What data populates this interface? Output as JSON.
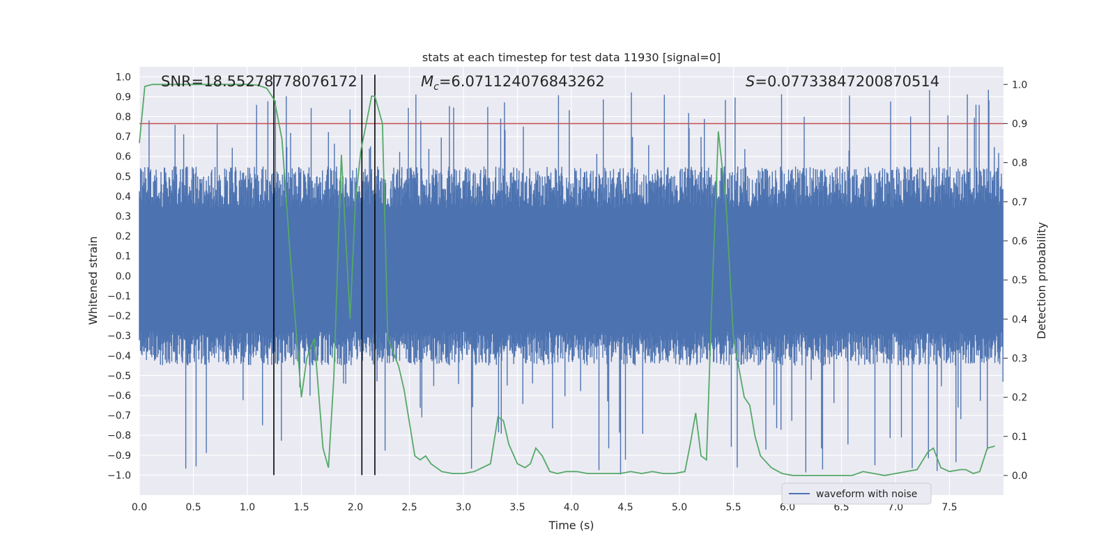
{
  "chart_data": {
    "type": "line",
    "title": "stats at each timestep for test data 11930 [signal=0]",
    "xlabel": "Time (s)",
    "ylabel_left": "Whitened strain",
    "ylabel_right": "Detection probability",
    "xlim": [
      0.0,
      8.0
    ],
    "ylim_left": [
      -1.1,
      1.05
    ],
    "ylim_right": [
      -0.05,
      1.045
    ],
    "x_ticks": [
      "0.0",
      "0.5",
      "1.0",
      "1.5",
      "2.0",
      "2.5",
      "3.0",
      "3.5",
      "4.0",
      "4.5",
      "5.0",
      "5.5",
      "6.0",
      "6.5",
      "7.0",
      "7.5"
    ],
    "x_tick_values": [
      0.0,
      0.5,
      1.0,
      1.5,
      2.0,
      2.5,
      3.0,
      3.5,
      4.0,
      4.5,
      5.0,
      5.5,
      6.0,
      6.5,
      7.0,
      7.5
    ],
    "y_ticks_left": [
      "1.0",
      "0.9",
      "0.8",
      "0.7",
      "0.6",
      "0.5",
      "0.4",
      "0.3",
      "0.2",
      "0.1",
      "0.0",
      "−0.1",
      "−0.2",
      "−0.3",
      "−0.4",
      "−0.5",
      "−0.6",
      "−0.7",
      "−0.8",
      "−0.9",
      "−1.0"
    ],
    "y_tick_values_left": [
      1.0,
      0.9,
      0.8,
      0.7,
      0.6,
      0.5,
      0.4,
      0.3,
      0.2,
      0.1,
      0.0,
      -0.1,
      -0.2,
      -0.3,
      -0.4,
      -0.5,
      -0.6,
      -0.7,
      -0.8,
      -0.9,
      -1.0
    ],
    "y_ticks_right": [
      "1.0",
      "0.9",
      "0.8",
      "0.7",
      "0.6",
      "0.5",
      "0.4",
      "0.3",
      "0.2",
      "0.1",
      "0.0"
    ],
    "y_tick_values_right": [
      1.0,
      0.9,
      0.8,
      0.7,
      0.6,
      0.5,
      0.4,
      0.3,
      0.2,
      0.1,
      0.0
    ],
    "annotations": {
      "snr": "SNR=18.55278778076172",
      "mc_symbol": "M",
      "mc_sub": "c",
      "mc_value": "=6.071124076843262",
      "s_symbol": "S",
      "s_value": "=0.07733847200870514"
    },
    "legend": {
      "label": "waveform with noise",
      "position": "lower-right"
    },
    "threshold": {
      "axis": "right",
      "value": 0.9,
      "color": "#c44e52"
    },
    "vertical_lines_x": [
      1.245,
      2.06,
      2.18
    ],
    "waveform": {
      "name": "waveform with noise",
      "color": "#4c72b0",
      "sample_count": 1600,
      "typical_range": [
        -0.45,
        0.55
      ],
      "extreme_range": [
        -1.0,
        0.94
      ]
    },
    "detection_probability": {
      "name": "Detection probability",
      "color": "#55a868",
      "x": [
        0.0,
        0.05,
        0.12,
        0.3,
        0.6,
        0.9,
        1.0,
        1.1,
        1.18,
        1.25,
        1.32,
        1.4,
        1.5,
        1.55,
        1.62,
        1.7,
        1.75,
        1.8,
        1.87,
        1.95,
        2.0,
        2.05,
        2.15,
        2.18,
        2.25,
        2.3,
        2.4,
        2.45,
        2.55,
        2.6,
        2.65,
        2.7,
        2.8,
        2.9,
        3.0,
        3.1,
        3.25,
        3.32,
        3.37,
        3.42,
        3.5,
        3.57,
        3.62,
        3.67,
        3.73,
        3.8,
        3.87,
        3.95,
        4.05,
        4.15,
        4.3,
        4.45,
        4.55,
        4.65,
        4.75,
        4.85,
        4.95,
        5.05,
        5.1,
        5.15,
        5.2,
        5.25,
        5.3,
        5.36,
        5.43,
        5.5,
        5.6,
        5.65,
        5.7,
        5.75,
        5.85,
        5.95,
        6.05,
        6.2,
        6.4,
        6.6,
        6.7,
        6.8,
        6.9,
        7.0,
        7.1,
        7.2,
        7.3,
        7.35,
        7.42,
        7.5,
        7.6,
        7.65,
        7.72,
        7.78,
        7.85,
        7.92
      ],
      "y": [
        0.85,
        0.995,
        1.0,
        1.0,
        1.0,
        1.0,
        1.0,
        0.998,
        0.99,
        0.96,
        0.86,
        0.55,
        0.2,
        0.3,
        0.35,
        0.07,
        0.02,
        0.25,
        0.82,
        0.4,
        0.7,
        0.83,
        0.97,
        0.97,
        0.9,
        0.35,
        0.28,
        0.22,
        0.05,
        0.04,
        0.05,
        0.03,
        0.01,
        0.005,
        0.005,
        0.01,
        0.03,
        0.15,
        0.14,
        0.08,
        0.03,
        0.02,
        0.03,
        0.07,
        0.05,
        0.01,
        0.005,
        0.01,
        0.01,
        0.005,
        0.005,
        0.005,
        0.01,
        0.005,
        0.01,
        0.005,
        0.005,
        0.01,
        0.08,
        0.16,
        0.05,
        0.04,
        0.45,
        0.88,
        0.7,
        0.35,
        0.2,
        0.18,
        0.1,
        0.05,
        0.02,
        0.005,
        0.0,
        0.0,
        0.0,
        0.0,
        0.01,
        0.005,
        0.0,
        0.005,
        0.01,
        0.015,
        0.06,
        0.07,
        0.02,
        0.01,
        0.015,
        0.015,
        0.005,
        0.01,
        0.07,
        0.075
      ]
    }
  }
}
